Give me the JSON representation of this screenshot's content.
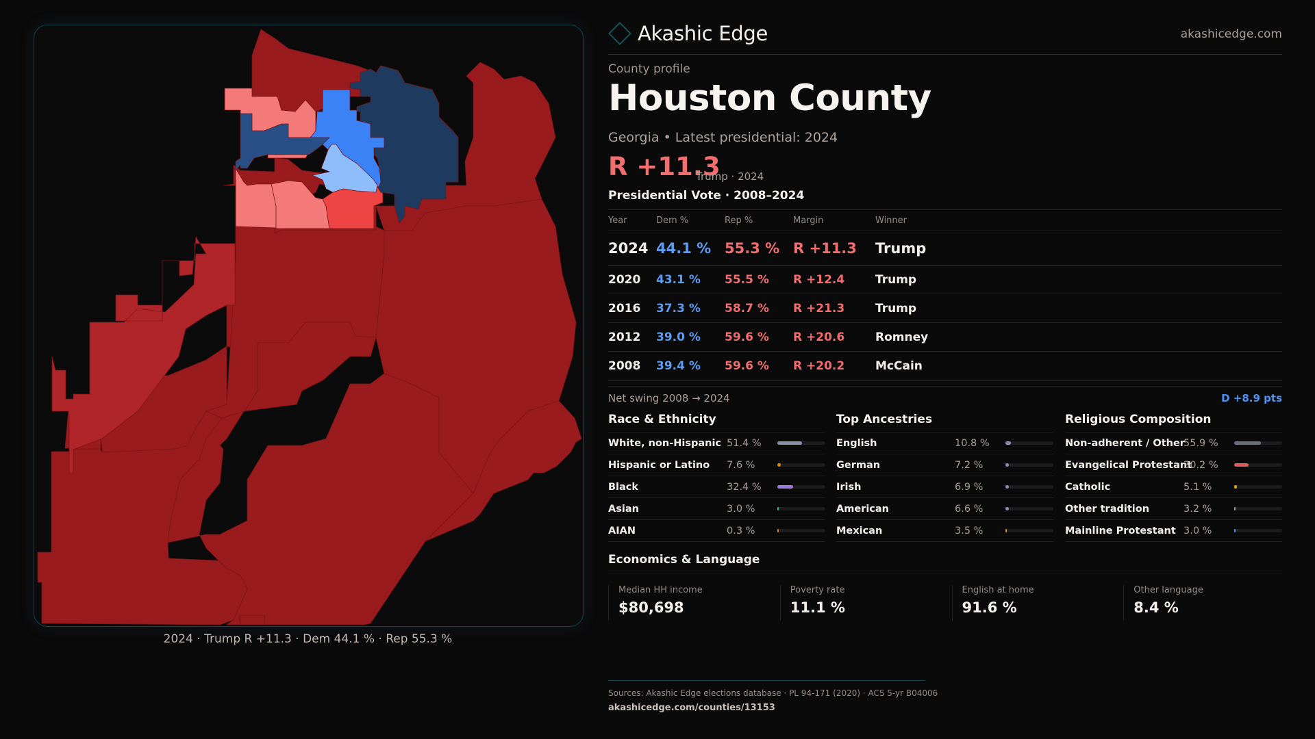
{
  "brand": {
    "name": "Akashic Edge",
    "logo_icon": "diamond-outline-icon",
    "site": "akashicedge.com"
  },
  "profile": {
    "eyebrow": "County profile",
    "title": "Houston County",
    "subtitle": "Georgia • Latest presidential: 2024",
    "margin": "R +11.3",
    "margin_sub": "Trump · 2024"
  },
  "votes": {
    "title": "Presidential Vote · 2008–2024",
    "headers": [
      "Year",
      "Dem %",
      "Rep %",
      "Margin",
      "Winner"
    ],
    "rows": [
      {
        "year": "2024",
        "dem": "44.1 %",
        "rep": "55.3 %",
        "margin": "R +11.3",
        "winner": "Trump"
      },
      {
        "year": "2020",
        "dem": "43.1 %",
        "rep": "55.5 %",
        "margin": "R +12.4",
        "winner": "Trump"
      },
      {
        "year": "2016",
        "dem": "37.3 %",
        "rep": "58.7 %",
        "margin": "R +21.3",
        "winner": "Trump"
      },
      {
        "year": "2012",
        "dem": "39.0 %",
        "rep": "59.6 %",
        "margin": "R +20.6",
        "winner": "Romney"
      },
      {
        "year": "2008",
        "dem": "39.4 %",
        "rep": "59.6 %",
        "margin": "R +20.2",
        "winner": "McCain"
      }
    ],
    "swing_label": "Net swing 2008 → 2024",
    "swing_value": "D +8.9 pts"
  },
  "race": {
    "title": "Race & Ethnicity",
    "items": [
      {
        "label": "White, non-Hispanic",
        "value": "51.4 %",
        "pct": 51.4,
        "color": "#8a93a6"
      },
      {
        "label": "Hispanic or Latino",
        "value": "7.6 %",
        "pct": 7.6,
        "color": "#e08a12"
      },
      {
        "label": "Black",
        "value": "32.4 %",
        "pct": 32.4,
        "color": "#9b7be0"
      },
      {
        "label": "Asian",
        "value": "3.0 %",
        "pct": 3.0,
        "color": "#2fbf8c"
      },
      {
        "label": "AIAN",
        "value": "0.3 %",
        "pct": 0.3,
        "color": "#d9772a"
      }
    ]
  },
  "ancestry": {
    "title": "Top Ancestries",
    "items": [
      {
        "label": "English",
        "value": "10.8 %",
        "pct": 10.8,
        "color": "#8a93a6"
      },
      {
        "label": "German",
        "value": "7.2 %",
        "pct": 7.2,
        "color": "#8a93a6"
      },
      {
        "label": "Irish",
        "value": "6.9 %",
        "pct": 6.9,
        "color": "#8a93a6"
      },
      {
        "label": "American",
        "value": "6.6 %",
        "pct": 6.6,
        "color": "#8a93a6"
      },
      {
        "label": "Mexican",
        "value": "3.5 %",
        "pct": 3.5,
        "color": "#e08a12"
      }
    ]
  },
  "religion": {
    "title": "Religious Composition",
    "items": [
      {
        "label": "Non-adherent / Other",
        "value": "55.9 %",
        "pct": 55.9,
        "color": "#6b7080"
      },
      {
        "label": "Evangelical Protestant",
        "value": "30.2 %",
        "pct": 30.2,
        "color": "#e05a5f"
      },
      {
        "label": "Catholic",
        "value": "5.1 %",
        "pct": 5.1,
        "color": "#e0a012"
      },
      {
        "label": "Other tradition",
        "value": "3.2 %",
        "pct": 3.2,
        "color": "#8a93a6"
      },
      {
        "label": "Mainline Protestant",
        "value": "3.0 %",
        "pct": 3.0,
        "color": "#4f93f0"
      }
    ]
  },
  "economics": {
    "title": "Economics & Language",
    "stats": [
      {
        "label": "Median HH income",
        "value": "$80,698"
      },
      {
        "label": "Poverty rate",
        "value": "11.1 %"
      },
      {
        "label": "English at home",
        "value": "91.6 %"
      },
      {
        "label": "Other language",
        "value": "8.4 %"
      }
    ]
  },
  "map": {
    "caption": "2024 · Trump R +11.3 · Dem 44.1 % · Rep 55.3 %",
    "colors": {
      "safe_r": "#9a1b1e",
      "likely_r": "#b0252a",
      "lean_r": "#f47a7a",
      "tilt_r": "#ef4444",
      "safe_d": "#1e3a5f",
      "likely_d": "#284f86",
      "lean_d": "#3b82f6",
      "tilt_d": "#8dbdfa"
    }
  },
  "sources": {
    "text": "Sources: Akashic Edge elections database · PL 94-171 (2020) · ACS 5-yr B04006",
    "url": "akashicedge.com/counties/13153"
  }
}
